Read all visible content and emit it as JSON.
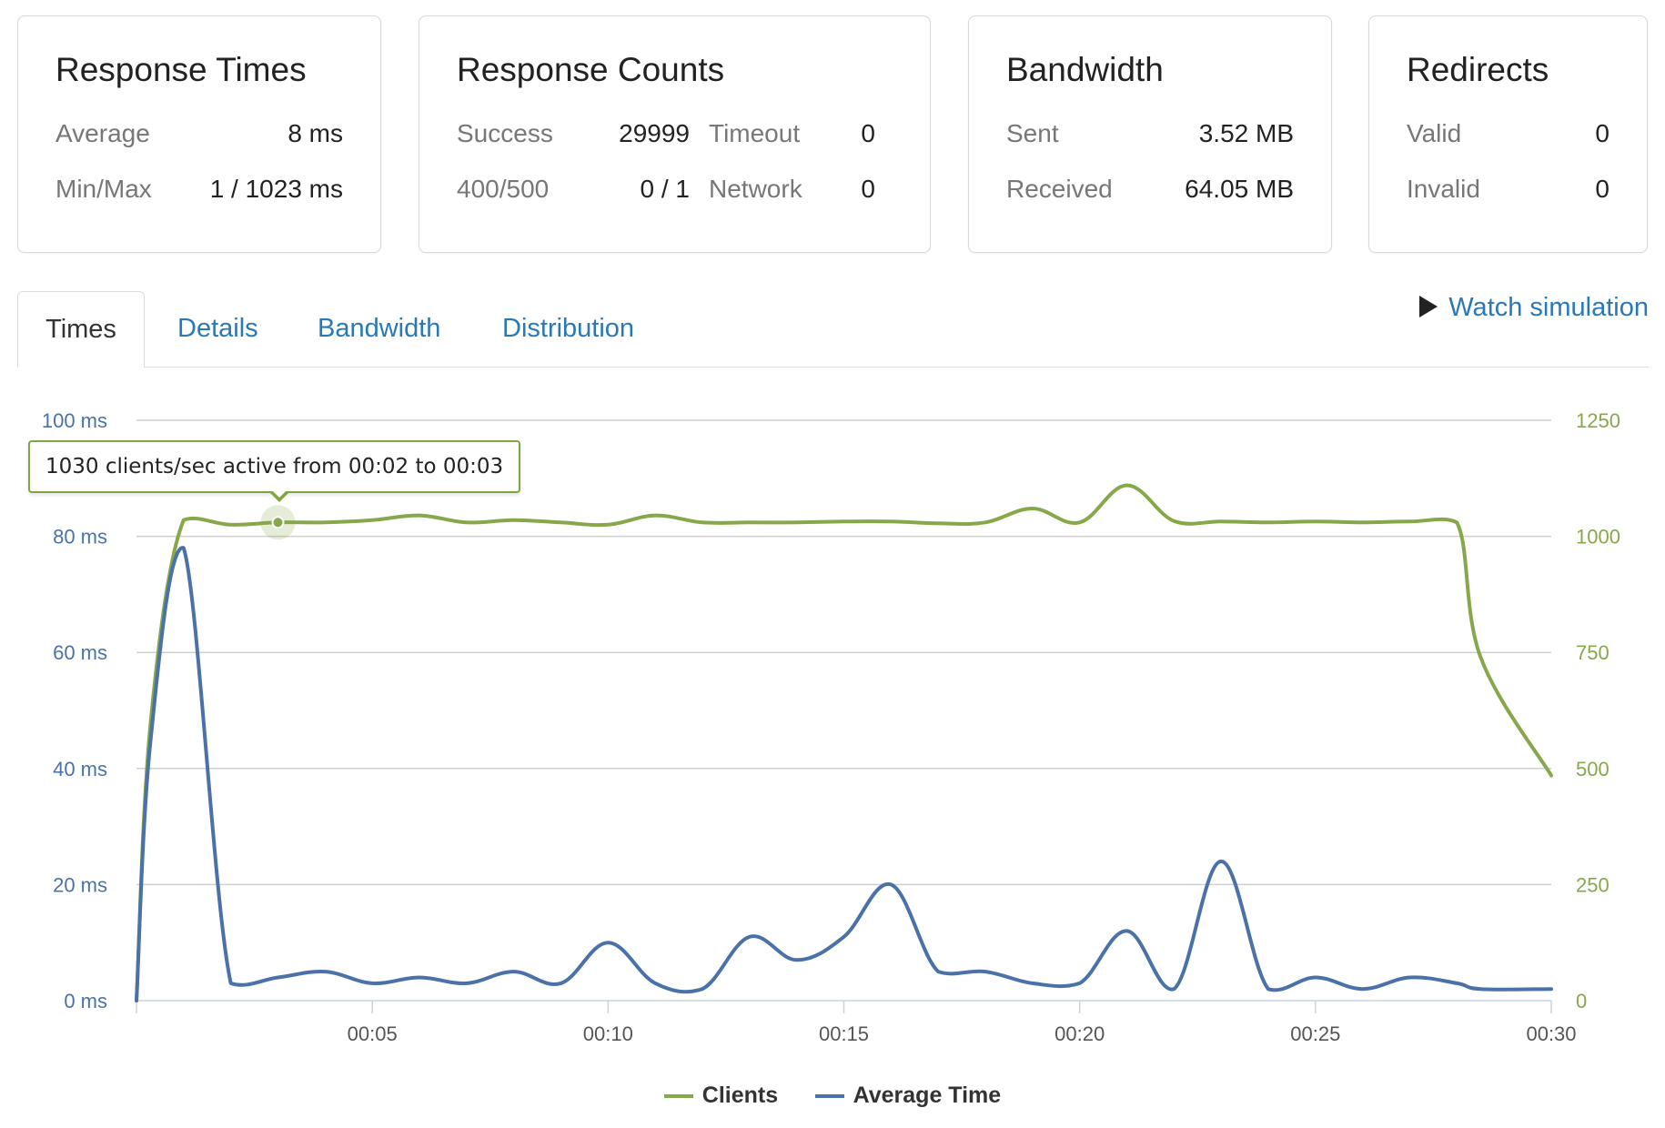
{
  "cards": {
    "response_times": {
      "title": "Response Times",
      "average_label": "Average",
      "average_value": "8 ms",
      "minmax_label": "Min/Max",
      "minmax_value": "1 / 1023 ms"
    },
    "response_counts": {
      "title": "Response Counts",
      "success_label": "Success",
      "success_value": "29999",
      "timeout_label": "Timeout",
      "timeout_value": "0",
      "errors_label": "400/500",
      "errors_value": "0 / 1",
      "network_label": "Network",
      "network_value": "0"
    },
    "bandwidth": {
      "title": "Bandwidth",
      "sent_label": "Sent",
      "sent_value": "3.52 MB",
      "received_label": "Received",
      "received_value": "64.05 MB"
    },
    "redirects": {
      "title": "Redirects",
      "valid_label": "Valid",
      "valid_value": "0",
      "invalid_label": "Invalid",
      "invalid_value": "0"
    }
  },
  "tabs": {
    "times": "Times",
    "details": "Details",
    "bandwidth": "Bandwidth",
    "distribution": "Distribution",
    "active": "Times"
  },
  "watch_simulation": "Watch simulation",
  "tooltip": {
    "text": "1030 clients/sec active from 00:02 to 00:03"
  },
  "legend": {
    "clients": "Clients",
    "average_time": "Average Time"
  },
  "colors": {
    "clients": "#87a84a",
    "average_time": "#4a72a8",
    "link": "#2a78b8"
  },
  "chart_data": {
    "type": "line",
    "x_unit": "seconds",
    "x": [
      0,
      0.3,
      1,
      2,
      3,
      4,
      5,
      6,
      7,
      8,
      9,
      10,
      11,
      12,
      13,
      14,
      15,
      16,
      17,
      18,
      19,
      20,
      21,
      22,
      23,
      24,
      25,
      26,
      27,
      28,
      28.5,
      30
    ],
    "x_ticks": [
      5,
      10,
      15,
      20,
      25,
      30
    ],
    "x_tick_labels": [
      "00:05",
      "00:10",
      "00:15",
      "00:20",
      "00:25",
      "00:30"
    ],
    "left_axis": {
      "label_suffix": " ms",
      "range": [
        0,
        100
      ],
      "ticks": [
        0,
        20,
        40,
        60,
        80,
        100
      ],
      "tick_labels": [
        "0 ms",
        "20 ms",
        "40 ms",
        "60 ms",
        "80 ms",
        "100 ms"
      ]
    },
    "right_axis": {
      "range": [
        0,
        1250
      ],
      "ticks": [
        0,
        250,
        500,
        750,
        1000,
        1250
      ],
      "tick_labels": [
        "0",
        "250",
        "500",
        "750",
        "1000",
        "1250"
      ]
    },
    "series": [
      {
        "name": "Clients",
        "axis": "right",
        "values": [
          0,
          600,
          1035,
          1025,
          1030,
          1030,
          1035,
          1045,
          1030,
          1035,
          1030,
          1025,
          1045,
          1030,
          1030,
          1030,
          1032,
          1032,
          1028,
          1030,
          1060,
          1030,
          1110,
          1033,
          1032,
          1030,
          1032,
          1030,
          1032,
          1030,
          740,
          485
        ]
      },
      {
        "name": "Average Time",
        "axis": "left",
        "values": [
          0,
          45,
          78,
          3,
          4,
          5,
          3,
          4,
          3,
          5,
          3,
          10,
          3,
          2,
          11,
          7,
          11,
          20,
          5,
          5,
          3,
          3,
          12,
          2,
          24,
          2,
          4,
          2,
          4,
          3,
          2,
          2
        ]
      }
    ],
    "highlight": {
      "series": "Clients",
      "x": 3,
      "value": 1030
    }
  }
}
